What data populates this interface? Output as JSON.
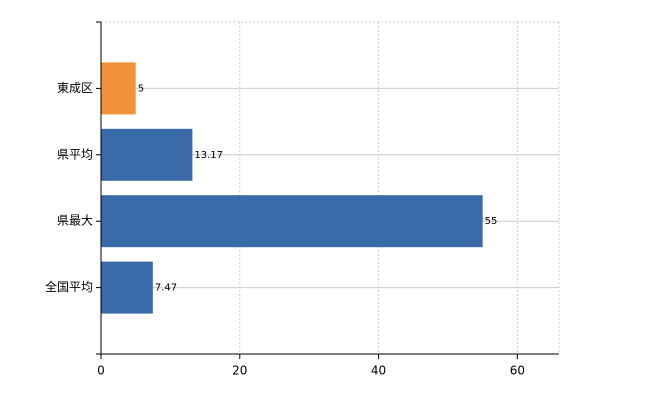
{
  "chart_data": {
    "type": "bar",
    "orientation": "horizontal",
    "categories": [
      "東成区",
      "県平均",
      "県最大",
      "全国平均"
    ],
    "values": [
      5,
      13.17,
      55,
      7.47
    ],
    "colors": [
      "#f0923a",
      "#3a6aa8",
      "#3a6aa8",
      "#3a6aa8"
    ],
    "xlim": [
      0,
      66
    ],
    "xticks": [
      0,
      20,
      40,
      60
    ],
    "grid": true
  }
}
